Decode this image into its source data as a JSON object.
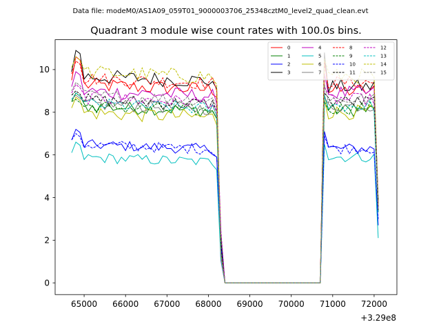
{
  "suptitle": "Data file: modeM0/AS1A09_059T01_9000003706_25348cztM0_level2_quad_clean.evt",
  "chart_data": {
    "type": "line",
    "title": "Quadrant 3 module wise count rates with 100.0s bins.",
    "xlabel": "",
    "ylabel": "",
    "x_offset_label": "+3.29e8",
    "xlim": [
      64300,
      72550
    ],
    "ylim": [
      -0.55,
      11.4
    ],
    "xticks": [
      65000,
      66000,
      67000,
      68000,
      69000,
      70000,
      71000,
      72000
    ],
    "yticks": [
      0,
      2,
      4,
      6,
      8,
      10
    ],
    "grid": false,
    "legend": {
      "location": "top-right",
      "ncol": 4
    },
    "segments": [
      {
        "t_start": 64700,
        "t_end": 68200,
        "n": 36
      },
      {
        "t_start": 68400,
        "t_end": 70700,
        "gap": true
      },
      {
        "t_start": 70800,
        "t_end": 72100,
        "n": 14
      }
    ],
    "series": [
      {
        "name": "0",
        "color": "#ff0000",
        "dash": false,
        "level_a": 9.3,
        "level_b": 9.0,
        "noise": 0.35,
        "peak": 10.6,
        "end": 3.5
      },
      {
        "name": "1",
        "color": "#008000",
        "dash": false,
        "level_a": 8.3,
        "level_b": 8.1,
        "noise": 0.3,
        "peak": 8.9,
        "end": 3.9
      },
      {
        "name": "2",
        "color": "#0000ff",
        "dash": false,
        "level_a": 6.5,
        "level_b": 6.3,
        "noise": 0.25,
        "peak": 7.2,
        "end": 2.7
      },
      {
        "name": "3",
        "color": "#000000",
        "dash": false,
        "level_a": 9.7,
        "level_b": 9.2,
        "noise": 0.35,
        "peak": 10.9,
        "end": 3.8
      },
      {
        "name": "4",
        "color": "#bf00bf",
        "dash": false,
        "level_a": 9.0,
        "level_b": 8.9,
        "noise": 0.35,
        "peak": 9.9,
        "end": 3.6
      },
      {
        "name": "5",
        "color": "#00bfbf",
        "dash": false,
        "level_a": 5.9,
        "level_b": 5.9,
        "noise": 0.25,
        "peak": 6.6,
        "end": 2.1
      },
      {
        "name": "6",
        "color": "#bfbf00",
        "dash": false,
        "level_a": 8.0,
        "level_b": 8.0,
        "noise": 0.35,
        "peak": 8.7,
        "end": 3.3
      },
      {
        "name": "7",
        "color": "#808080",
        "dash": false,
        "level_a": 8.4,
        "level_b": 8.3,
        "noise": 0.3,
        "peak": 8.8,
        "end": 3.4
      },
      {
        "name": "8",
        "color": "#ff0000",
        "dash": true,
        "level_a": 9.6,
        "level_b": 9.4,
        "noise": 0.3,
        "peak": 10.4,
        "end": 3.7
      },
      {
        "name": "9",
        "color": "#008000",
        "dash": true,
        "level_a": 8.3,
        "level_b": 8.2,
        "noise": 0.3,
        "peak": 8.6,
        "end": 3.3
      },
      {
        "name": "10",
        "color": "#0000ff",
        "dash": true,
        "level_a": 6.5,
        "level_b": 6.3,
        "noise": 0.25,
        "peak": 7.0,
        "end": 3.0
      },
      {
        "name": "11",
        "color": "#000000",
        "dash": true,
        "level_a": 8.6,
        "level_b": 8.5,
        "noise": 0.3,
        "peak": 9.0,
        "end": 3.4
      },
      {
        "name": "12",
        "color": "#bf00bf",
        "dash": true,
        "level_a": 8.7,
        "level_b": 8.6,
        "noise": 0.3,
        "peak": 9.3,
        "end": 3.5
      },
      {
        "name": "13",
        "color": "#00bfbf",
        "dash": true,
        "level_a": 8.4,
        "level_b": 8.3,
        "noise": 0.3,
        "peak": 8.9,
        "end": 3.3
      },
      {
        "name": "14",
        "color": "#bfbf00",
        "dash": true,
        "level_a": 9.9,
        "level_b": 9.7,
        "noise": 0.35,
        "peak": 10.6,
        "end": 3.6
      },
      {
        "name": "15",
        "color": "#808080",
        "dash": true,
        "level_a": 8.8,
        "level_b": 8.6,
        "noise": 0.3,
        "peak": 9.4,
        "end": 3.4
      }
    ]
  }
}
